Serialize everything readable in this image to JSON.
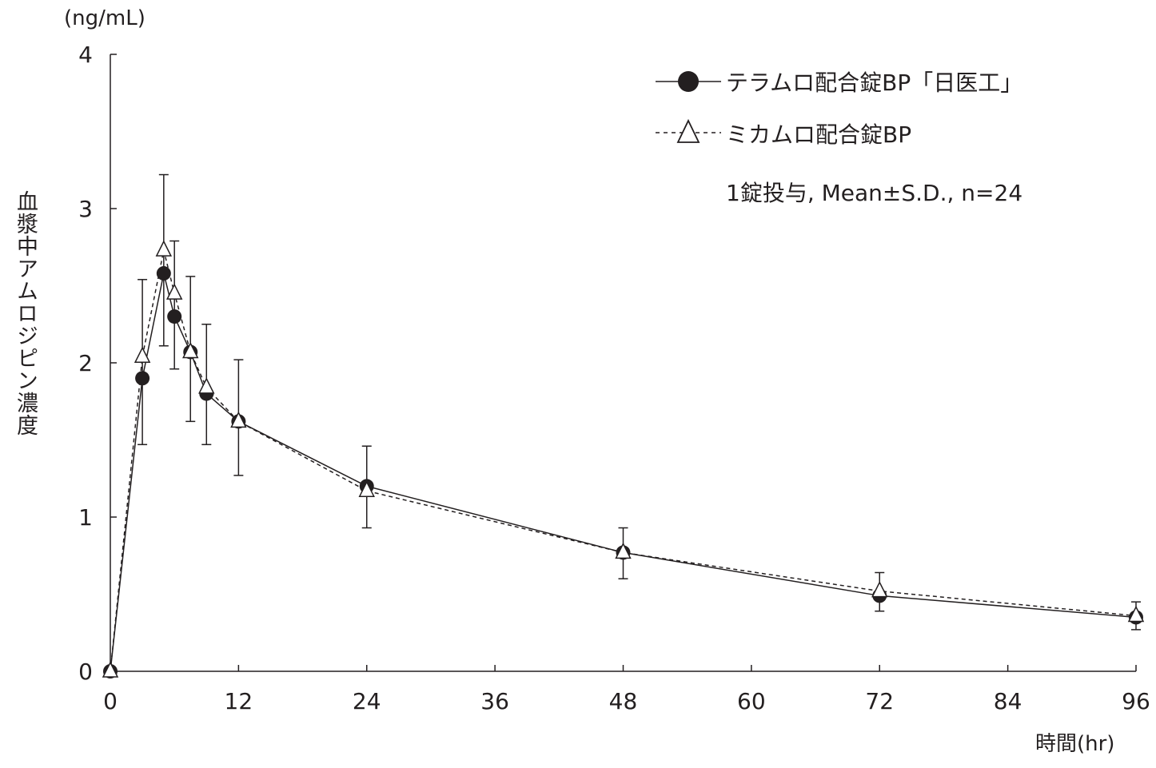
{
  "chart_data": {
    "type": "line",
    "title": "",
    "xlabel": "時間(hr)",
    "ylabel": "血漿中アムロジピン濃度",
    "y_unit": "(ng/mL)",
    "xlim": [
      0,
      96
    ],
    "ylim": [
      0,
      4
    ],
    "xticks": [
      0,
      12,
      24,
      36,
      48,
      60,
      72,
      84,
      96
    ],
    "yticks": [
      0,
      1,
      2,
      3,
      4
    ],
    "grid": false,
    "legend_position": "top-right",
    "annotation": "1錠投与, Mean±S.D., n=24",
    "x": [
      0,
      3,
      5,
      6,
      7.5,
      9,
      12,
      24,
      48,
      72,
      96
    ],
    "series": [
      {
        "name": "テラムロ配合錠BP「日医工」",
        "marker": "filled-circle",
        "line": "solid",
        "values": [
          0,
          1.9,
          2.58,
          2.3,
          2.07,
          1.8,
          1.62,
          1.2,
          0.77,
          0.49,
          0.35
        ]
      },
      {
        "name": "ミカムロ配合錠BP",
        "marker": "open-triangle",
        "line": "dashed",
        "values": [
          0,
          2.04,
          2.73,
          2.45,
          2.07,
          1.84,
          1.62,
          1.17,
          0.77,
          0.52,
          0.36
        ]
      }
    ],
    "error_bars": {
      "upper": [
        0,
        2.54,
        3.22,
        2.79,
        2.56,
        2.25,
        2.02,
        1.46,
        0.93,
        0.64,
        0.45
      ],
      "lower": [
        0,
        1.47,
        2.11,
        1.96,
        1.62,
        1.47,
        1.27,
        0.93,
        0.6,
        0.39,
        0.27
      ]
    }
  }
}
